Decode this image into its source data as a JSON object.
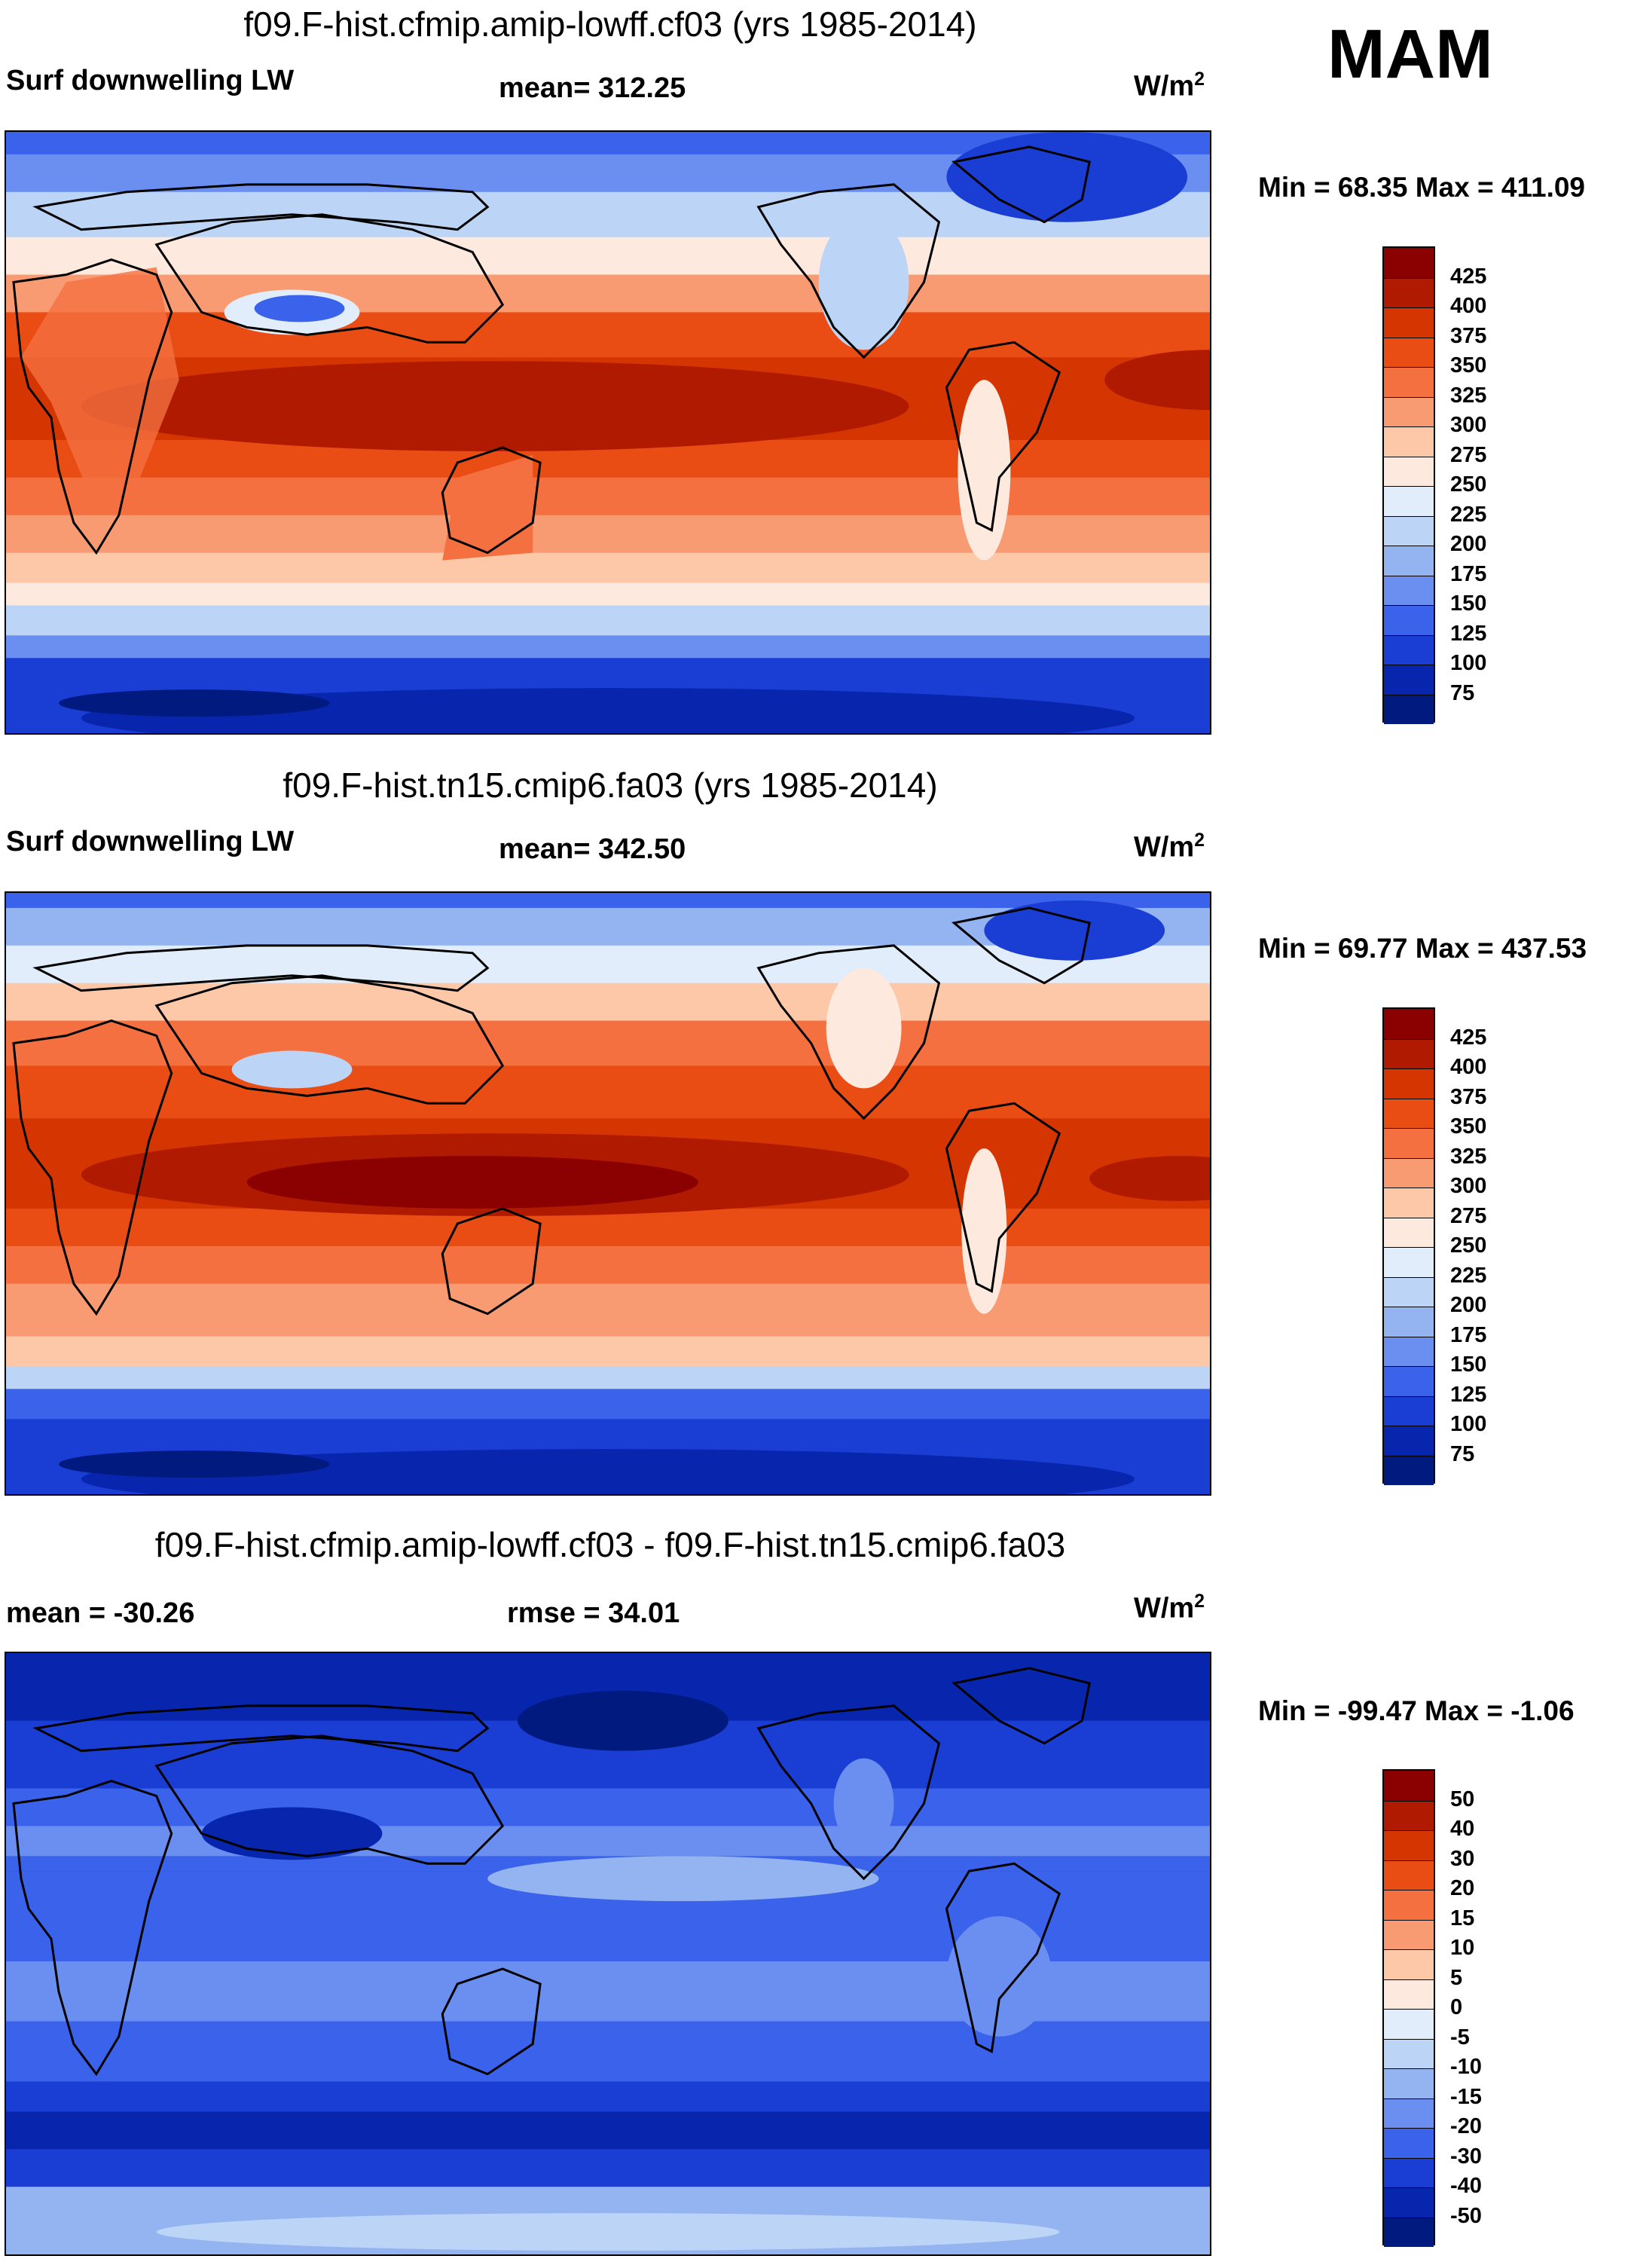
{
  "season": "MAM",
  "panels": [
    {
      "title": "f09.F-hist.cfmip.amip-lowff.cf03 (yrs 1985-2014)",
      "left_label": "Surf downwelling LW",
      "center_label": "mean= 312.25",
      "units": "W/m",
      "units_sup": "2",
      "minmax": "Min =  68.35 Max = 411.09",
      "colorbar": {
        "ticks": [
          "425",
          "400",
          "375",
          "350",
          "325",
          "300",
          "275",
          "250",
          "225",
          "200",
          "175",
          "150",
          "125",
          "100",
          "75"
        ],
        "colors": [
          "#8b0000",
          "#b01a00",
          "#d53500",
          "#ea4d14",
          "#f47040",
          "#f89a72",
          "#fcc8a8",
          "#fde9dd",
          "#e2edfb",
          "#bcd4f6",
          "#93b4f0",
          "#6a8ff0",
          "#3a62ea",
          "#1a3ed4",
          "#0826ad",
          "#001a80"
        ]
      }
    },
    {
      "title": "f09.F-hist.tn15.cmip6.fa03 (yrs 1985-2014)",
      "left_label": "Surf downwelling LW",
      "center_label": "mean= 342.50",
      "units": "W/m",
      "units_sup": "2",
      "minmax": "Min =  69.77 Max = 437.53",
      "colorbar": {
        "ticks": [
          "425",
          "400",
          "375",
          "350",
          "325",
          "300",
          "275",
          "250",
          "225",
          "200",
          "175",
          "150",
          "125",
          "100",
          "75"
        ],
        "colors": [
          "#8b0000",
          "#b01a00",
          "#d53500",
          "#ea4d14",
          "#f47040",
          "#f89a72",
          "#fcc8a8",
          "#fde9dd",
          "#e2edfb",
          "#bcd4f6",
          "#93b4f0",
          "#6a8ff0",
          "#3a62ea",
          "#1a3ed4",
          "#0826ad",
          "#001a80"
        ]
      }
    },
    {
      "title": "f09.F-hist.cfmip.amip-lowff.cf03 - f09.F-hist.tn15.cmip6.fa03",
      "left_label": "mean = -30.26",
      "center_label": "rmse =  34.01",
      "units": "W/m",
      "units_sup": "2",
      "minmax": "Min = -99.47 Max =  -1.06",
      "colorbar": {
        "ticks": [
          "50",
          "40",
          "30",
          "20",
          "15",
          "10",
          "5",
          "0",
          "-5",
          "-10",
          "-15",
          "-20",
          "-30",
          "-40",
          "-50"
        ],
        "colors": [
          "#8b0000",
          "#b01a00",
          "#d53500",
          "#ea4d14",
          "#f47040",
          "#f89a72",
          "#fcc8a8",
          "#fde9dd",
          "#e2edfb",
          "#bcd4f6",
          "#93b4f0",
          "#6a8ff0",
          "#3a62ea",
          "#1a3ed4",
          "#0826ad",
          "#001a80"
        ]
      }
    }
  ],
  "chart_data": [
    {
      "type": "heatmap",
      "title": "f09.F-hist.cfmip.amip-lowff.cf03 (yrs 1985-2014)",
      "variable": "Surf downwelling LW",
      "mean": 312.25,
      "min": 68.35,
      "max": 411.09,
      "units": "W/m2",
      "levels": [
        75,
        100,
        125,
        150,
        175,
        200,
        225,
        250,
        275,
        300,
        325,
        350,
        375,
        400,
        425
      ],
      "xrange": [
        0,
        360
      ],
      "yrange": [
        -90,
        90
      ]
    },
    {
      "type": "heatmap",
      "title": "f09.F-hist.tn15.cmip6.fa03 (yrs 1985-2014)",
      "variable": "Surf downwelling LW",
      "mean": 342.5,
      "min": 69.77,
      "max": 437.53,
      "units": "W/m2",
      "levels": [
        75,
        100,
        125,
        150,
        175,
        200,
        225,
        250,
        275,
        300,
        325,
        350,
        375,
        400,
        425
      ],
      "xrange": [
        0,
        360
      ],
      "yrange": [
        -90,
        90
      ]
    },
    {
      "type": "heatmap",
      "title": "f09.F-hist.cfmip.amip-lowff.cf03 - f09.F-hist.tn15.cmip6.fa03",
      "mean": -30.26,
      "rmse": 34.01,
      "min": -99.47,
      "max": -1.06,
      "units": "W/m2",
      "levels": [
        -50,
        -40,
        -30,
        -20,
        -15,
        -10,
        -5,
        0,
        5,
        10,
        15,
        20,
        30,
        40,
        50
      ],
      "xrange": [
        0,
        360
      ],
      "yrange": [
        -90,
        90
      ]
    }
  ]
}
